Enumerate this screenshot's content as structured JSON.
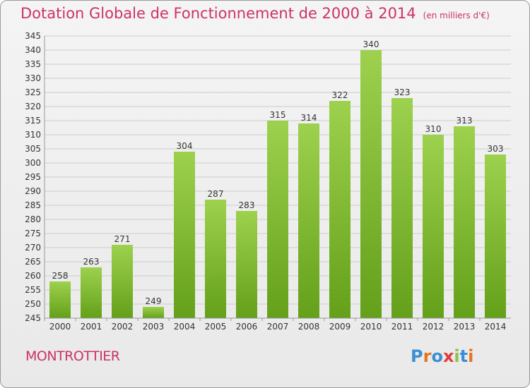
{
  "header": {
    "title": "Dotation Globale de Fonctionnement de 2000 à 2014",
    "unit_note": "(en milliers d'€)"
  },
  "footer": {
    "commune": "MONTROTTIER",
    "logo_text": "Proxiti"
  },
  "colors": {
    "title": "#cc3366",
    "bar_light": "#9dd14e",
    "bar_dark": "#64a01a",
    "grid": "#cccccc"
  },
  "chart_data": {
    "type": "bar",
    "title": "Dotation Globale de Fonctionnement de 2000 à 2014",
    "subtitle": "(en milliers d'€)",
    "categories": [
      "2000",
      "2001",
      "2002",
      "2003",
      "2004",
      "2005",
      "2006",
      "2007",
      "2008",
      "2009",
      "2010",
      "2011",
      "2012",
      "2013",
      "2014"
    ],
    "values": [
      258,
      263,
      271,
      249,
      304,
      287,
      283,
      315,
      314,
      322,
      340,
      323,
      310,
      313,
      303
    ],
    "ylim": [
      245,
      345
    ],
    "ytick_step": 5,
    "grid": true,
    "xlabel": "",
    "ylabel": ""
  }
}
